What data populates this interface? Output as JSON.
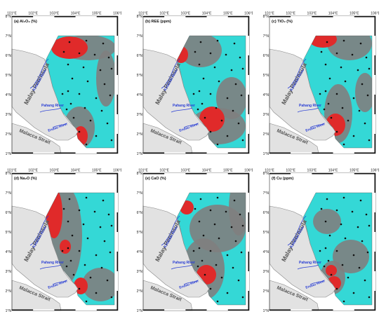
{
  "lon_ticks": [
    "101°E",
    "102°E",
    "103°E",
    "104°E",
    "105°E",
    "106°E"
  ],
  "lat_ticks": [
    "8°N",
    "7°N",
    "6°N",
    "5°N",
    "4°N",
    "3°N",
    "2°N",
    "1°N"
  ],
  "labels": {
    "peninsula": "Malay Peninsula",
    "strait": "Malacca Strait",
    "rivers": [
      "Kelantan River",
      "Pahang River",
      "Endau River"
    ]
  },
  "panels": [
    {
      "title": "(a) Al₂O₃ (%)"
    },
    {
      "title": "(b) REE (ppm)"
    },
    {
      "title": "(c) TiO₂ (%)"
    },
    {
      "title": "(d) Na₂O (%)"
    },
    {
      "title": "(e) CaO (%)"
    },
    {
      "title": "(f) Cu (ppm)"
    }
  ],
  "colors": {
    "low": "#34d8d6",
    "mid": "#7f7f7f",
    "high": "#e02a2a",
    "land": "#e2e2e2",
    "river": "#2a3fd4"
  }
}
